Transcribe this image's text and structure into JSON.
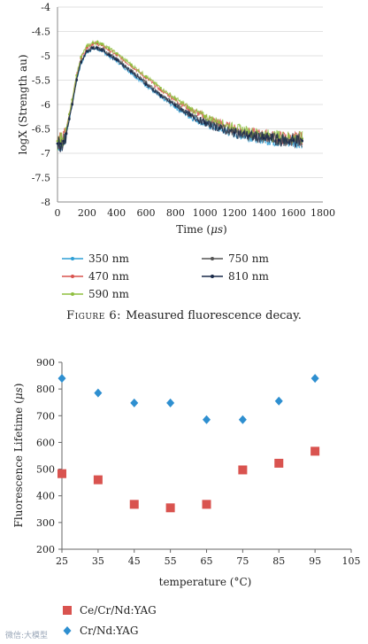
{
  "chart_data": [
    {
      "type": "line",
      "xlabel_prefix": "Time (",
      "xlabel_unit": "μs",
      "xlabel_suffix": ")",
      "ylabel": "logX (Strength au)",
      "xlim": [
        0,
        1800
      ],
      "ylim": [
        -8,
        -4
      ],
      "xticks": [
        0,
        200,
        400,
        600,
        800,
        1000,
        1200,
        1400,
        1600,
        1800
      ],
      "yticks": [
        -4,
        -4.5,
        -5,
        -5.5,
        -6,
        -6.5,
        -7,
        -7.5,
        -8
      ],
      "grid": true,
      "legend_position": "bottom",
      "series": [
        {
          "name": "350 nm",
          "color": "#2e9fd6",
          "x": [
            0,
            20,
            40,
            60,
            80,
            100,
            130,
            160,
            200,
            240,
            270,
            300,
            350,
            400,
            500,
            600,
            700,
            800,
            900,
            1000,
            1100,
            1200,
            1300,
            1400,
            1500,
            1600,
            1660
          ],
          "y": [
            -6.8,
            -6.8,
            -6.75,
            -6.6,
            -6.3,
            -6.0,
            -5.5,
            -5.15,
            -4.92,
            -4.85,
            -4.86,
            -4.9,
            -5.0,
            -5.1,
            -5.35,
            -5.6,
            -5.85,
            -6.05,
            -6.25,
            -6.4,
            -6.5,
            -6.6,
            -6.65,
            -6.7,
            -6.75,
            -6.75,
            -6.75
          ]
        },
        {
          "name": "470 nm",
          "color": "#d9534f",
          "x": [
            0,
            20,
            40,
            60,
            80,
            100,
            130,
            160,
            200,
            240,
            270,
            300,
            350,
            400,
            500,
            600,
            700,
            800,
            900,
            1000,
            1100,
            1200,
            1300,
            1400,
            1500,
            1600,
            1660
          ],
          "y": [
            -6.75,
            -6.75,
            -6.7,
            -6.5,
            -6.2,
            -5.9,
            -5.4,
            -5.05,
            -4.82,
            -4.75,
            -4.75,
            -4.78,
            -4.88,
            -4.98,
            -5.2,
            -5.45,
            -5.7,
            -5.9,
            -6.1,
            -6.25,
            -6.38,
            -6.5,
            -6.58,
            -6.63,
            -6.68,
            -6.7,
            -6.7
          ]
        },
        {
          "name": "590 nm",
          "color": "#8fbf3f",
          "x": [
            0,
            20,
            40,
            60,
            80,
            100,
            130,
            160,
            200,
            240,
            270,
            300,
            350,
            400,
            500,
            600,
            700,
            800,
            900,
            1000,
            1100,
            1200,
            1300,
            1400,
            1500,
            1600,
            1660
          ],
          "y": [
            -6.75,
            -6.75,
            -6.7,
            -6.5,
            -6.2,
            -5.9,
            -5.4,
            -5.02,
            -4.8,
            -4.73,
            -4.72,
            -4.75,
            -4.85,
            -4.95,
            -5.18,
            -5.42,
            -5.66,
            -5.88,
            -6.08,
            -6.24,
            -6.37,
            -6.48,
            -6.56,
            -6.62,
            -6.66,
            -6.68,
            -6.7
          ]
        },
        {
          "name": "750 nm",
          "color": "#555555",
          "x": [
            0,
            20,
            40,
            60,
            80,
            100,
            130,
            160,
            200,
            240,
            270,
            300,
            350,
            400,
            500,
            600,
            700,
            800,
            900,
            1000,
            1100,
            1200,
            1300,
            1400,
            1500,
            1600,
            1660
          ],
          "y": [
            -6.8,
            -6.8,
            -6.75,
            -6.58,
            -6.28,
            -5.98,
            -5.48,
            -5.12,
            -4.9,
            -4.83,
            -4.83,
            -4.86,
            -4.96,
            -5.06,
            -5.3,
            -5.55,
            -5.8,
            -6.0,
            -6.2,
            -6.36,
            -6.47,
            -6.57,
            -6.63,
            -6.68,
            -6.72,
            -6.73,
            -6.74
          ]
        },
        {
          "name": "810 nm",
          "color": "#1a2a4a",
          "x": [
            0,
            20,
            40,
            60,
            80,
            100,
            130,
            160,
            200,
            240,
            270,
            300,
            350,
            400,
            500,
            600,
            700,
            800,
            900,
            1000,
            1100,
            1200,
            1300,
            1400,
            1500,
            1600,
            1660
          ],
          "y": [
            -6.8,
            -6.8,
            -6.75,
            -6.6,
            -6.3,
            -6.0,
            -5.5,
            -5.13,
            -4.9,
            -4.84,
            -4.84,
            -4.88,
            -4.98,
            -5.08,
            -5.32,
            -5.58,
            -5.82,
            -6.02,
            -6.22,
            -6.38,
            -6.49,
            -6.58,
            -6.64,
            -6.69,
            -6.73,
            -6.74,
            -6.75
          ]
        }
      ]
    },
    {
      "type": "scatter",
      "xlabel": "temperature (°C)",
      "ylabel_prefix": "Fluorescence Lifetime (",
      "ylabel_unit": "μs",
      "ylabel_suffix": ")",
      "xlim": [
        25,
        105
      ],
      "ylim": [
        200,
        900
      ],
      "xticks": [
        25,
        35,
        45,
        55,
        65,
        75,
        85,
        95,
        105
      ],
      "yticks": [
        900,
        800,
        700,
        600,
        500,
        400,
        300,
        200
      ],
      "grid": false,
      "legend_position": "bottom-left",
      "series": [
        {
          "name": "Ce/Cr/Nd:YAG",
          "color": "#d9534f",
          "marker": "square",
          "x": [
            25,
            35,
            45,
            55,
            65,
            75,
            85,
            95
          ],
          "y": [
            483,
            460,
            368,
            355,
            368,
            497,
            522,
            567
          ]
        },
        {
          "name": "Cr/Nd:YAG",
          "color": "#2e8fd0",
          "marker": "diamond",
          "x": [
            25,
            35,
            45,
            55,
            65,
            75,
            85,
            95
          ],
          "y": [
            840,
            785,
            748,
            748,
            685,
            685,
            755,
            840
          ]
        }
      ]
    }
  ],
  "caption": {
    "label": "Figure 6:",
    "text": "Measured fluorescence decay."
  },
  "watermark": "微信:大模型"
}
